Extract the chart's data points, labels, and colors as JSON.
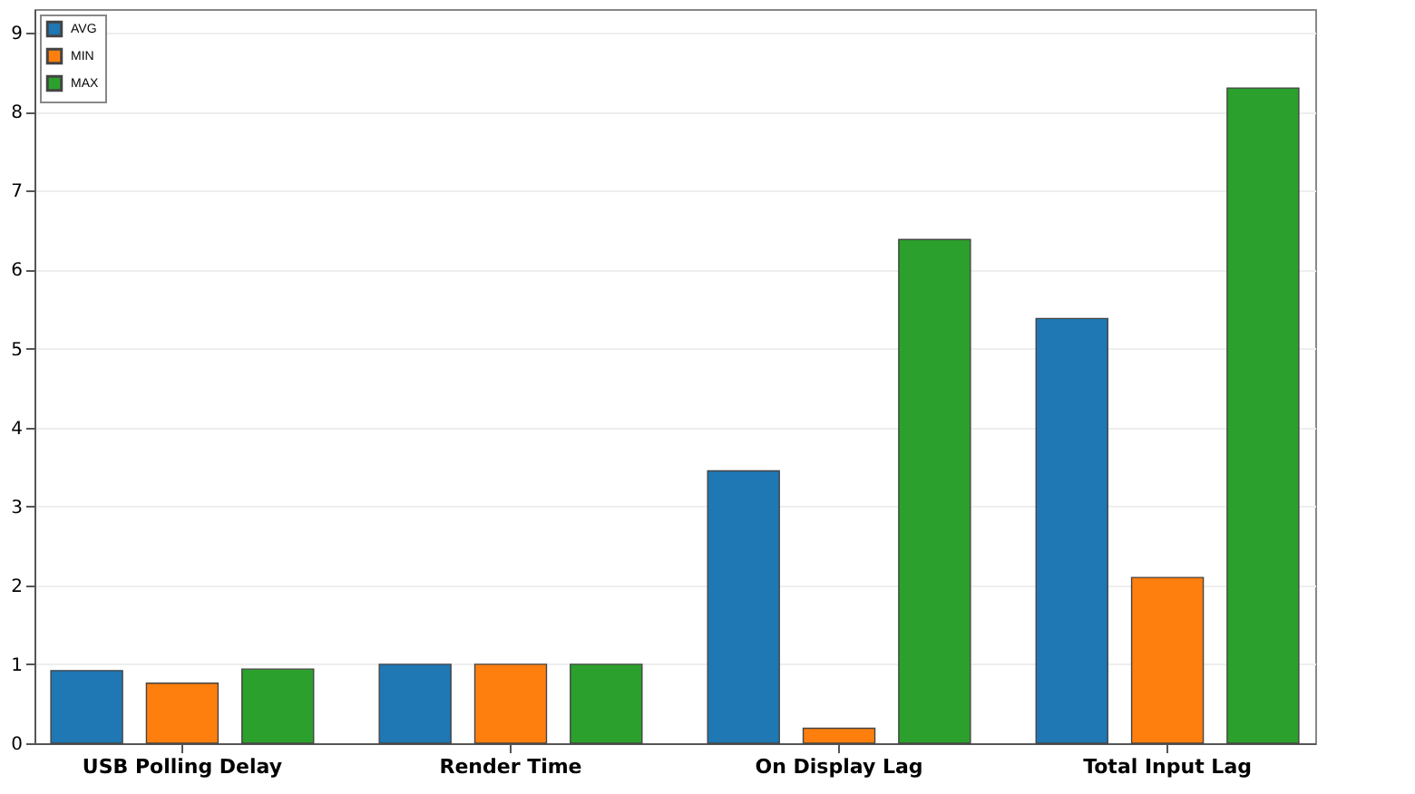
{
  "chart_data": {
    "type": "bar",
    "categories": [
      "USB Polling Delay",
      "Render Time",
      "On Display Lag",
      "Total Input Lag"
    ],
    "series": [
      {
        "name": "AVG",
        "color": "#1f77b4",
        "values": [
          0.92,
          1.0,
          3.45,
          5.38
        ]
      },
      {
        "name": "MIN",
        "color": "#ff7f0e",
        "values": [
          0.76,
          1.0,
          0.19,
          2.1
        ]
      },
      {
        "name": "MAX",
        "color": "#2ca02c",
        "values": [
          0.94,
          1.0,
          6.38,
          8.3
        ]
      }
    ],
    "ylim": [
      0,
      9.3
    ],
    "yticks": [
      0,
      1,
      2,
      3,
      4,
      5,
      6,
      7,
      8,
      9
    ],
    "grid": "y",
    "legend": "top left"
  }
}
